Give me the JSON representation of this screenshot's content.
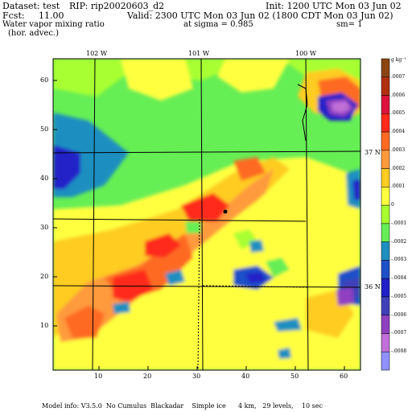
{
  "header": {
    "dataset_label": "Dataset: test",
    "rip_label": "RIP: rip20020603_d2",
    "init_label": "Init: 1200 UTC Mon 03 Jun 02",
    "fcst_label": "Fcst:",
    "fcst_value": "11.00",
    "valid_label": "Valid: 2300 UTC Mon 03 Jun 02 (1800 CDT Mon 03 Jun 02)",
    "field_name": "Water vapor mixing ratio",
    "field_desc": "(hor. advec.)",
    "sigma_label": "at sigma = 0.985",
    "sm_label": "sm= 1"
  },
  "map": {
    "lon_labels": [
      "102 W",
      "101 W",
      "100 W"
    ],
    "lat_labels": [
      "37 N",
      "36 N"
    ],
    "x_ticks": [
      "10",
      "20",
      "30",
      "40",
      "50",
      "60"
    ],
    "y_ticks": [
      "10",
      "20",
      "30",
      "40",
      "50",
      "60"
    ]
  },
  "colorbar": {
    "unit_label": "g kg⁻¹",
    "levels": [
      {
        "label": ".0007",
        "color": "#8b4513"
      },
      {
        "label": ".0006",
        "color": "#b03010"
      },
      {
        "label": ".0005",
        "color": "#dc143c"
      },
      {
        "label": ".0004",
        "color": "#ff2a1a"
      },
      {
        "label": ".0003",
        "color": "#ff6a20"
      },
      {
        "label": ".0002",
        "color": "#ff9a3c"
      },
      {
        "label": ".0001",
        "color": "#ffcc22"
      },
      {
        "label": "0",
        "color": "#ffff40"
      },
      {
        "label": "-.0001",
        "color": "#a8ff30"
      },
      {
        "label": "-.0002",
        "color": "#66ee55"
      },
      {
        "label": "-.0003",
        "color": "#1e8fc0"
      },
      {
        "label": "-.0004",
        "color": "#1e50c8"
      },
      {
        "label": "-.0005",
        "color": "#2020c8"
      },
      {
        "label": "-.0006",
        "color": "#4040b8"
      },
      {
        "label": "-.0007",
        "color": "#9040c0"
      },
      {
        "label": "-.0008",
        "color": "#c070d8"
      },
      {
        "label": "",
        "color": "#9090ff"
      }
    ]
  },
  "footer": {
    "text": "Model info: V3.5.0  No Cumulus  Blackadar    Simple ice      4 km,   29 levels,    10 sec"
  }
}
